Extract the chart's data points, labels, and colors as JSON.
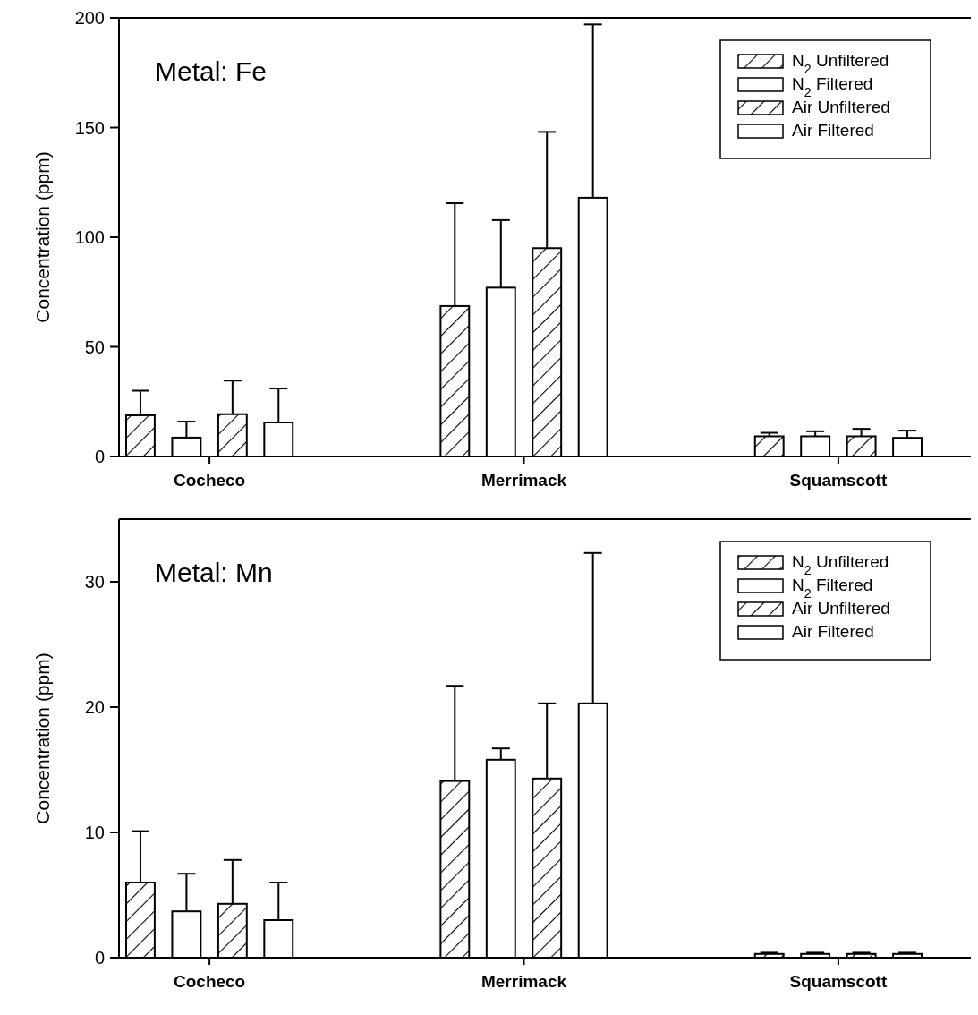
{
  "chart_data": [
    {
      "type": "bar",
      "title": "Metal: Fe",
      "ylabel": "Concentration (ppm)",
      "categories": [
        "Cocheco",
        "Merrimack",
        "Squamscott"
      ],
      "ylim": [
        0,
        200
      ],
      "yticks": [
        0,
        50,
        100,
        150,
        200
      ],
      "legend": "top right",
      "series": [
        {
          "name": "N$_{2}$ Unfiltered",
          "color": "#000000",
          "values": [
            18.8,
            68.6,
            9.2
          ],
          "errors": [
            [
              18.8,
              30
            ],
            [
              68.6,
              115.5
            ],
            [
              9.2,
              10.8
            ]
          ]
        },
        {
          "name": "N$_{2}$ Filtered",
          "color": "#ffffff",
          "values": [
            8.6,
            77,
            9.2
          ],
          "errors": [
            [
              8.6,
              15.9
            ],
            [
              77,
              107.8
            ],
            [
              9.2,
              11.5
            ]
          ]
        },
        {
          "name": "Air Unfiltered",
          "color": "#000000",
          "values": [
            19.3,
            95,
            9.2
          ],
          "errors": [
            [
              19.3,
              34.6
            ],
            [
              95,
              148
            ],
            [
              9.2,
              12.6
            ]
          ]
        },
        {
          "name": "Air Filtered",
          "color": "#ffffff",
          "values": [
            15.5,
            118,
            8.5
          ],
          "errors": [
            [
              15.5,
              31
            ],
            [
              118,
              197
            ],
            [
              8.5,
              11.8
            ]
          ]
        }
      ]
    },
    {
      "type": "bar",
      "title": "Metal: Mn",
      "ylabel": "Concentration (ppm)",
      "categories": [
        "Cocheco",
        "Merrimack",
        "Squamscott"
      ],
      "ylim": [
        0,
        35
      ],
      "yticks": [
        0,
        10,
        20,
        30
      ],
      "legend": "top right",
      "series": [
        {
          "name": "N$_{2}$ Unfiltered",
          "color": "#000000",
          "values": [
            6.0,
            14.1,
            0.3
          ],
          "errors": [
            [
              6.0,
              10.1
            ],
            [
              14.1,
              21.7
            ],
            [
              0.3,
              0.4
            ]
          ]
        },
        {
          "name": "N$_{2}$ Filtered",
          "color": "#ffffff",
          "values": [
            3.7,
            15.8,
            0.3
          ],
          "errors": [
            [
              3.7,
              6.7
            ],
            [
              15.8,
              16.7
            ],
            [
              0.3,
              0.4
            ]
          ]
        },
        {
          "name": "Air Unfiltered",
          "color": "#000000",
          "values": [
            4.3,
            14.3,
            0.3
          ],
          "errors": [
            [
              4.3,
              7.8
            ],
            [
              14.3,
              20.3
            ],
            [
              0.3,
              0.4
            ]
          ]
        },
        {
          "name": "Air Filtered",
          "color": "#ffffff",
          "values": [
            3.0,
            20.3,
            0.3
          ],
          "errors": [
            [
              3.0,
              6.0
            ],
            [
              20.3,
              32.3
            ],
            [
              0.3,
              0.4
            ]
          ]
        }
      ]
    }
  ]
}
